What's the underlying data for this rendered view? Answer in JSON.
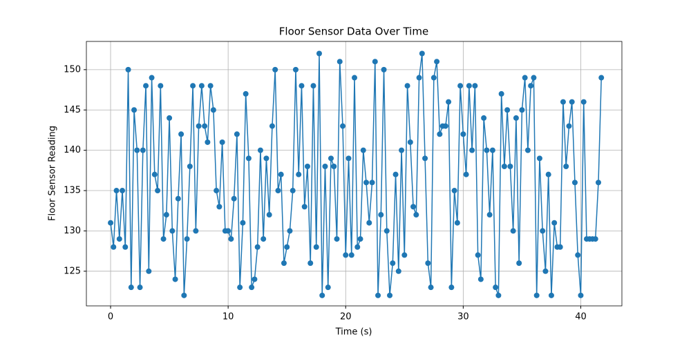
{
  "chart_data": {
    "type": "line",
    "title": "Floor Sensor Data Over Time",
    "x_label": "Time (s)",
    "y_label": "Floor Sensor Reading",
    "x": [
      0,
      0.25,
      0.5,
      0.75,
      1,
      1.25,
      1.5,
      1.75,
      2,
      2.25,
      2.5,
      2.75,
      3,
      3.25,
      3.5,
      3.75,
      4,
      4.25,
      4.5,
      4.75,
      5,
      5.25,
      5.5,
      5.75,
      6,
      6.25,
      6.5,
      6.75,
      7,
      7.25,
      7.5,
      7.75,
      8,
      8.25,
      8.5,
      8.75,
      9,
      9.25,
      9.5,
      9.75,
      10,
      10.25,
      10.5,
      10.75,
      11,
      11.25,
      11.5,
      11.75,
      12,
      12.25,
      12.5,
      12.75,
      13,
      13.25,
      13.5,
      13.75,
      14,
      14.25,
      14.5,
      14.75,
      15,
      15.25,
      15.5,
      15.75,
      16,
      16.25,
      16.5,
      16.75,
      17,
      17.25,
      17.5,
      17.75,
      18,
      18.25,
      18.5,
      18.75,
      19,
      19.25,
      19.5,
      19.75,
      20,
      20.25,
      20.5,
      20.75,
      21,
      21.25,
      21.5,
      21.75,
      22,
      22.25,
      22.5,
      22.75,
      23,
      23.25,
      23.5,
      23.75,
      24,
      24.25,
      24.5,
      24.75,
      25,
      25.25,
      25.5,
      25.75,
      26,
      26.25,
      26.5,
      26.75,
      27,
      27.25,
      27.5,
      27.75,
      28,
      28.25,
      28.5,
      28.75,
      29,
      29.25,
      29.5,
      29.75,
      30,
      30.25,
      30.5,
      30.75,
      31,
      31.25,
      31.5,
      31.75,
      32,
      32.25,
      32.5,
      32.75,
      33,
      33.25,
      33.5,
      33.75,
      34,
      34.25,
      34.5,
      34.75,
      35,
      35.25,
      35.5,
      35.75,
      36,
      36.25,
      36.5,
      36.75,
      37,
      37.25,
      37.5,
      37.75,
      38,
      38.25,
      38.5,
      38.75,
      39,
      39.25,
      39.5,
      39.75,
      40,
      40.25,
      40.5,
      40.75,
      41,
      41.25,
      41.5,
      41.75
    ],
    "series": [
      {
        "name": "Floor Sensor Reading",
        "color": "#1f77b4",
        "values": [
          131,
          128,
          135,
          129,
          135,
          128,
          150,
          123,
          145,
          140,
          123,
          140,
          148,
          125,
          149,
          137,
          135,
          148,
          129,
          132,
          144,
          130,
          124,
          134,
          142,
          122,
          129,
          138,
          148,
          130,
          143,
          148,
          143,
          141,
          148,
          145,
          135,
          133,
          141,
          130,
          130,
          129,
          134,
          142,
          123,
          131,
          147,
          139,
          123,
          124,
          128,
          140,
          129,
          139,
          132,
          143,
          150,
          135,
          137,
          126,
          128,
          130,
          135,
          150,
          137,
          148,
          133,
          138,
          126,
          148,
          128,
          152,
          122,
          138,
          123,
          139,
          138,
          129,
          151,
          143,
          127,
          139,
          127,
          149,
          128,
          129,
          140,
          136,
          131,
          136,
          151,
          122,
          132,
          150,
          130,
          122,
          126,
          137,
          125,
          140,
          127,
          148,
          141,
          133,
          132,
          149,
          152,
          139,
          126,
          123,
          149,
          151,
          142,
          143,
          143,
          146,
          123,
          135,
          131,
          148,
          142,
          137,
          148,
          140,
          148,
          127,
          124,
          144,
          140,
          132,
          140,
          123,
          122,
          147,
          138,
          145,
          138,
          130,
          144,
          126,
          145,
          149,
          140,
          148,
          149,
          122,
          139,
          130,
          125,
          137,
          122,
          131,
          128,
          128,
          146,
          138,
          143,
          146,
          136,
          127,
          122,
          146,
          129,
          129,
          129,
          129,
          136,
          149
        ]
      }
    ],
    "xlim": [
      -2.06,
      43.5
    ],
    "ylim": [
      120.7,
      153.5
    ],
    "xticks": [
      0,
      10,
      20,
      30,
      40
    ],
    "yticks": [
      125,
      130,
      135,
      140,
      145,
      150
    ],
    "grid": true
  }
}
